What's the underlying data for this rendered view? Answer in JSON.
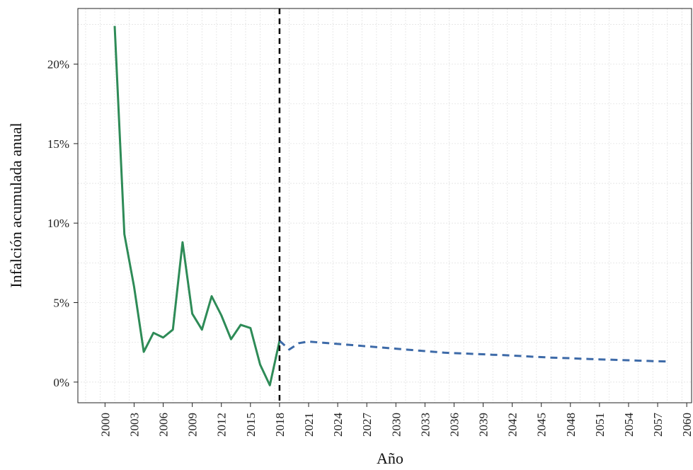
{
  "chart_data": {
    "type": "line",
    "title": "",
    "xlabel": "Año",
    "ylabel": "Infalción acumulada anual",
    "xlim": [
      1997.2,
      2060.5
    ],
    "ylim": [
      -1.3,
      23.5
    ],
    "x_ticks": [
      2000,
      2003,
      2006,
      2009,
      2012,
      2015,
      2018,
      2021,
      2024,
      2027,
      2030,
      2033,
      2036,
      2039,
      2042,
      2045,
      2048,
      2051,
      2054,
      2057,
      2060
    ],
    "x_tick_labels": [
      "2000",
      "2003",
      "2006",
      "2009",
      "2012",
      "2015",
      "2018",
      "2021",
      "2024",
      "2027",
      "2030",
      "2033",
      "2036",
      "2039",
      "2042",
      "2045",
      "2048",
      "2051",
      "2054",
      "2057",
      "2060"
    ],
    "y_ticks": [
      0,
      5,
      10,
      15,
      20
    ],
    "y_tick_labels": [
      "0%",
      "5%",
      "10%",
      "15%",
      "20%"
    ],
    "grid": true,
    "legend": "none",
    "vline": {
      "x": 2018,
      "style": "dashed",
      "color": "#000000"
    },
    "series": [
      {
        "style": "solid",
        "color": "#2e8b57",
        "x": [
          2001,
          2002,
          2003,
          2004,
          2005,
          2006,
          2007,
          2008,
          2009,
          2010,
          2011,
          2012,
          2013,
          2014,
          2015,
          2016,
          2017,
          2018
        ],
        "values": [
          22.4,
          9.3,
          6.0,
          1.9,
          3.1,
          2.8,
          3.3,
          8.8,
          4.3,
          3.3,
          5.4,
          4.2,
          2.7,
          3.6,
          3.4,
          1.1,
          -0.2,
          2.6
        ]
      },
      {
        "style": "dashed",
        "color": "#3d6aa8",
        "x": [
          2018,
          2019,
          2020,
          2021,
          2022,
          2023,
          2024,
          2025,
          2026,
          2027,
          2028,
          2029,
          2030,
          2031,
          2032,
          2033,
          2034,
          2035,
          2036,
          2037,
          2038,
          2039,
          2040,
          2041,
          2042,
          2043,
          2044,
          2045,
          2046,
          2047,
          2048,
          2049,
          2050,
          2051,
          2052,
          2053,
          2054,
          2055,
          2056,
          2057,
          2058
        ],
        "values": [
          2.6,
          2.05,
          2.45,
          2.55,
          2.5,
          2.45,
          2.4,
          2.35,
          2.3,
          2.25,
          2.2,
          2.15,
          2.1,
          2.05,
          2.0,
          1.95,
          1.9,
          1.85,
          1.82,
          1.8,
          1.77,
          1.75,
          1.72,
          1.7,
          1.67,
          1.64,
          1.6,
          1.57,
          1.54,
          1.52,
          1.5,
          1.47,
          1.45,
          1.43,
          1.41,
          1.39,
          1.37,
          1.35,
          1.33,
          1.31,
          1.3
        ]
      }
    ]
  }
}
